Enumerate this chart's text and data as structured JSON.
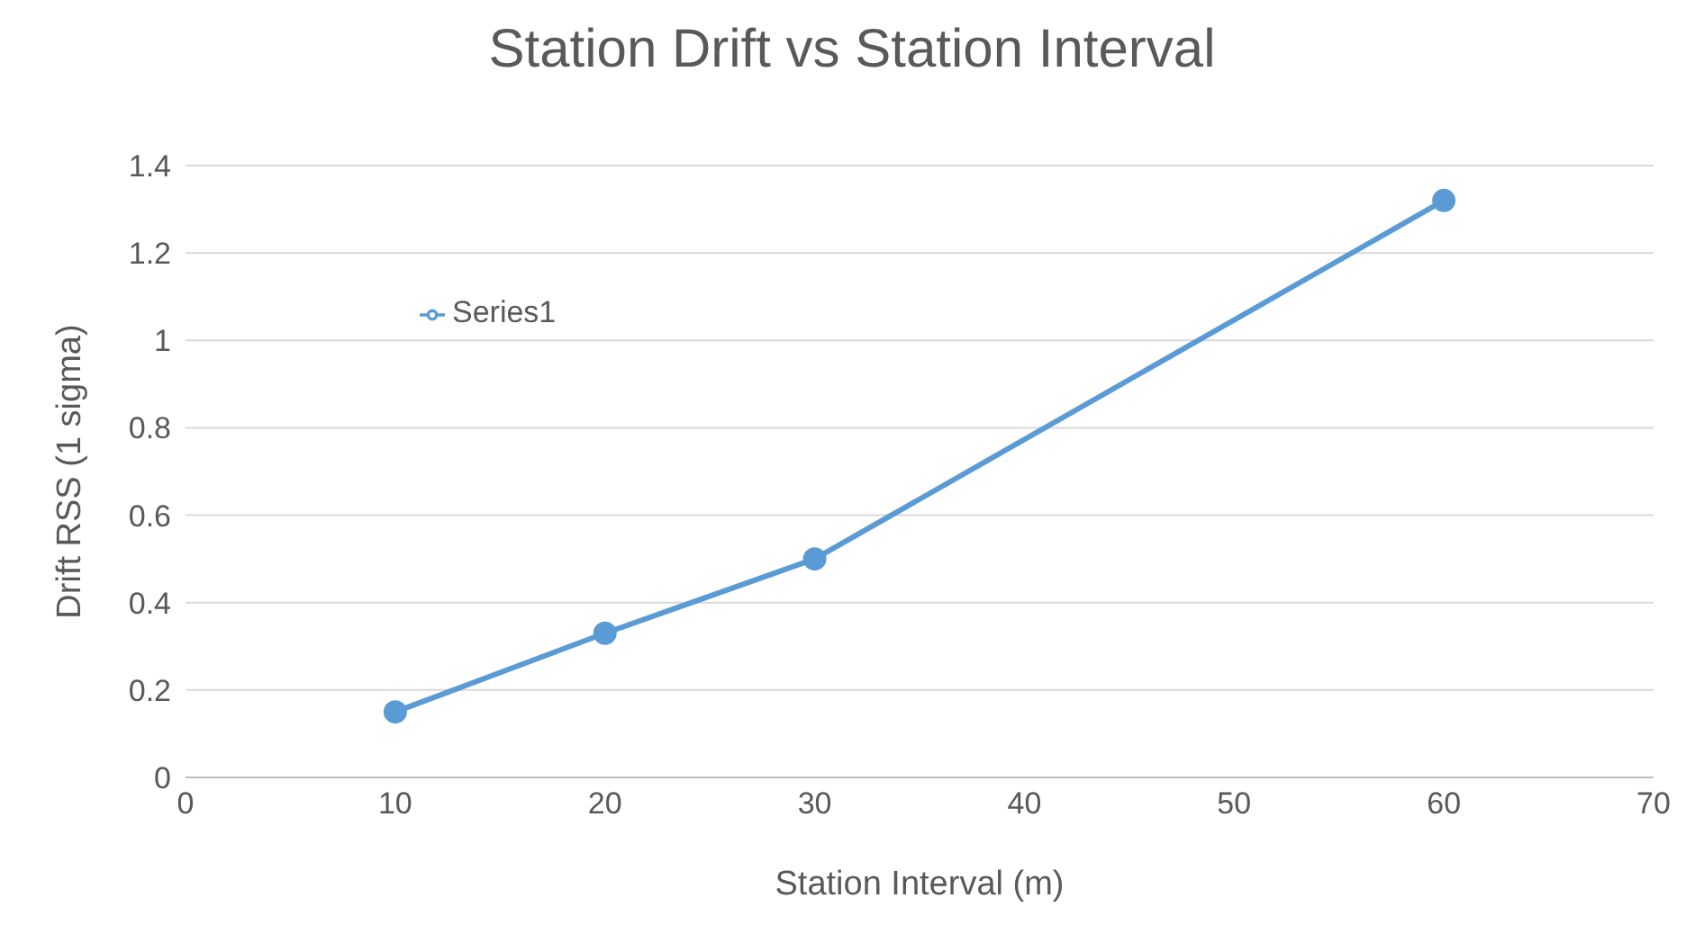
{
  "chart_data": {
    "type": "line",
    "title": "Station Drift vs Station Interval",
    "xlabel": "Station Interval (m)",
    "ylabel": "Drift RSS (1 sigma)",
    "x": [
      10,
      20,
      30,
      60
    ],
    "series": [
      {
        "name": "Series1",
        "color": "#5b9bd5",
        "values": [
          0.15,
          0.33,
          0.5,
          1.32
        ]
      }
    ],
    "xlim": [
      0,
      70
    ],
    "xticks": [
      0,
      10,
      20,
      30,
      40,
      50,
      60,
      70
    ],
    "ylim": [
      0,
      1.4
    ],
    "yticks": [
      0,
      0.2,
      0.4,
      0.6,
      0.8,
      1,
      1.2,
      1.4
    ],
    "grid": "y",
    "legend": "top left",
    "marker": "circle",
    "line_style": "solid"
  }
}
